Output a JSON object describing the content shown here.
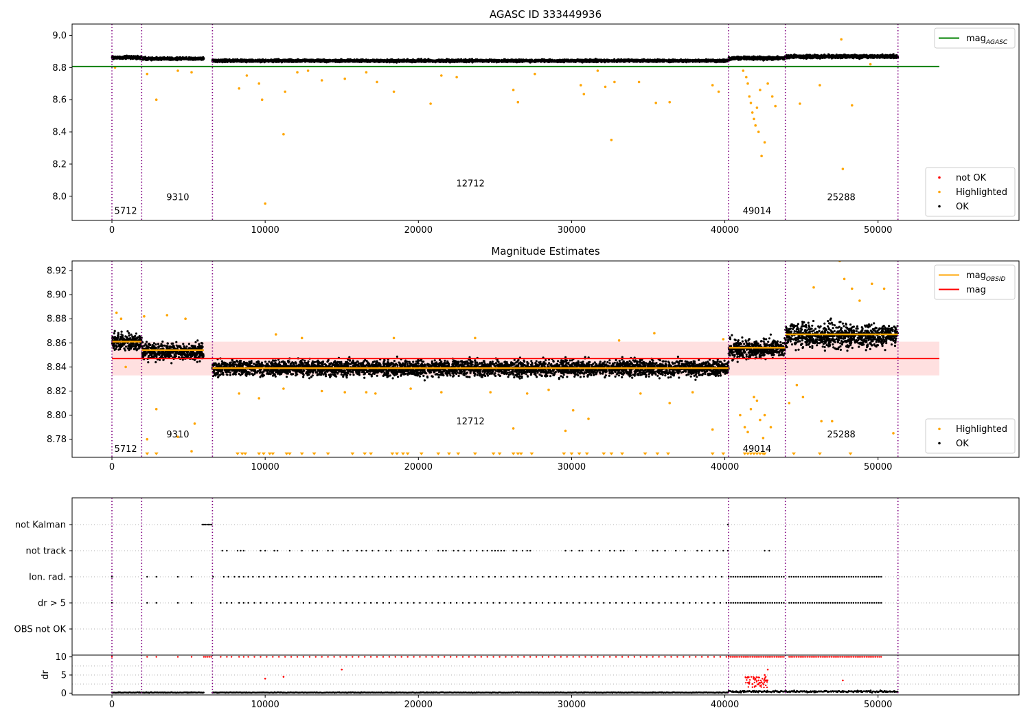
{
  "chart_data": [
    {
      "type": "scatter",
      "title": "AGASC ID 333449936",
      "xlim": [
        -2600,
        59200
      ],
      "ylim": [
        7.85,
        9.07
      ],
      "x_ticks": [
        0,
        10000,
        20000,
        30000,
        40000,
        50000
      ],
      "y_ticks": [
        8.0,
        8.2,
        8.4,
        8.6,
        8.8,
        9.0
      ],
      "y_tick_labels": [
        "8.0",
        "8.2",
        "8.4",
        "8.6",
        "8.8",
        "9.0"
      ],
      "grid": false,
      "legend_upper": {
        "placement": "top-right",
        "entries": [
          {
            "label": "mag",
            "sub": "AGASC",
            "color": "#008000",
            "kind": "line"
          }
        ]
      },
      "legend_lower": {
        "placement": "bottom-right",
        "entries": [
          {
            "label": "not OK",
            "color": "#ff0000",
            "kind": "dot"
          },
          {
            "label": "Highlighted",
            "color": "#ffa500",
            "kind": "dot"
          },
          {
            "label": "OK",
            "color": "#000000",
            "kind": "dot"
          }
        ]
      },
      "mag_agasc": {
        "y": 8.806,
        "x_end": 54000,
        "color": "#008000"
      },
      "obs_boundaries": [
        0,
        1940,
        6560,
        40250,
        43950,
        51300
      ],
      "obsid_labels": [
        {
          "text": "5712",
          "x": 900,
          "y": 7.91
        },
        {
          "text": "9310",
          "x": 4300,
          "y": 7.995
        },
        {
          "text": "12712",
          "x": 23400,
          "y": 8.08
        },
        {
          "text": "49014",
          "x": 42100,
          "y": 7.91
        },
        {
          "text": "25288",
          "x": 47600,
          "y": 7.995
        }
      ],
      "segments": [
        {
          "x": [
            0,
            1940
          ],
          "mean": 8.862,
          "spread": 0.012
        },
        {
          "x": [
            1940,
            6000
          ],
          "mean": 8.855,
          "spread": 0.011
        },
        {
          "x": [
            6560,
            40250
          ],
          "mean": 8.842,
          "spread": 0.011
        },
        {
          "x": [
            40250,
            43950
          ],
          "mean": 8.858,
          "spread": 0.013
        },
        {
          "x": [
            43950,
            51300
          ],
          "mean": 8.868,
          "spread": 0.014
        }
      ],
      "highlighted_points": [
        [
          200,
          8.8
        ],
        [
          2300,
          8.76
        ],
        [
          2900,
          8.6
        ],
        [
          4300,
          8.78
        ],
        [
          5200,
          8.77
        ],
        [
          8300,
          8.67
        ],
        [
          8800,
          8.75
        ],
        [
          9600,
          8.7
        ],
        [
          9800,
          8.6
        ],
        [
          10000,
          7.955
        ],
        [
          11200,
          8.385
        ],
        [
          11300,
          8.65
        ],
        [
          12100,
          8.77
        ],
        [
          12800,
          8.78
        ],
        [
          13700,
          8.72
        ],
        [
          15200,
          8.73
        ],
        [
          16600,
          8.77
        ],
        [
          17300,
          8.71
        ],
        [
          18400,
          8.65
        ],
        [
          20800,
          8.575
        ],
        [
          21500,
          8.75
        ],
        [
          22500,
          8.74
        ],
        [
          26200,
          8.66
        ],
        [
          26500,
          8.585
        ],
        [
          27600,
          8.76
        ],
        [
          30600,
          8.69
        ],
        [
          30800,
          8.635
        ],
        [
          31700,
          8.78
        ],
        [
          32200,
          8.68
        ],
        [
          32600,
          8.35
        ],
        [
          32800,
          8.71
        ],
        [
          34400,
          8.71
        ],
        [
          35500,
          8.58
        ],
        [
          36400,
          8.585
        ],
        [
          39200,
          8.69
        ],
        [
          39600,
          8.65
        ],
        [
          41200,
          8.78
        ],
        [
          41400,
          8.74
        ],
        [
          41500,
          8.7
        ],
        [
          41600,
          8.62
        ],
        [
          41700,
          8.58
        ],
        [
          41800,
          8.52
        ],
        [
          41900,
          8.48
        ],
        [
          42000,
          8.44
        ],
        [
          42100,
          8.55
        ],
        [
          42200,
          8.4
        ],
        [
          42300,
          8.66
        ],
        [
          42400,
          8.25
        ],
        [
          42600,
          8.335
        ],
        [
          42800,
          8.7
        ],
        [
          43100,
          8.62
        ],
        [
          43300,
          8.56
        ],
        [
          44900,
          8.575
        ],
        [
          46200,
          8.69
        ],
        [
          47600,
          8.975
        ],
        [
          47700,
          8.17
        ],
        [
          48300,
          8.565
        ],
        [
          49500,
          8.82
        ]
      ]
    },
    {
      "type": "scatter",
      "title": "Magnitude Estimates",
      "xlim": [
        -2600,
        59200
      ],
      "ylim": [
        8.765,
        8.928
      ],
      "x_ticks": [
        0,
        10000,
        20000,
        30000,
        40000,
        50000
      ],
      "y_ticks": [
        8.78,
        8.8,
        8.82,
        8.84,
        8.86,
        8.88,
        8.9,
        8.92
      ],
      "y_tick_labels": [
        "8.78",
        "8.80",
        "8.82",
        "8.84",
        "8.86",
        "8.88",
        "8.90",
        "8.92"
      ],
      "grid": false,
      "legend_upper": {
        "placement": "top-right",
        "entries": [
          {
            "label": "mag",
            "sub": "OBSID",
            "color": "#ffa500",
            "kind": "line"
          },
          {
            "label": "mag",
            "sub": "",
            "color": "#ff0000",
            "kind": "line"
          }
        ]
      },
      "legend_lower": {
        "placement": "bottom-right",
        "entries": [
          {
            "label": "Highlighted",
            "color": "#ffa500",
            "kind": "dot"
          },
          {
            "label": "OK",
            "color": "#000000",
            "kind": "dot"
          }
        ]
      },
      "mag_mean": {
        "y": 8.847,
        "band": [
          8.833,
          8.861
        ],
        "x_end": 54000,
        "color": "#ff0000"
      },
      "mag_obsid": [
        {
          "x": [
            0,
            1940
          ],
          "y": 8.861
        },
        {
          "x": [
            1940,
            6000
          ],
          "y": 8.854
        },
        {
          "x": [
            6560,
            40250
          ],
          "y": 8.839
        },
        {
          "x": [
            40250,
            43950
          ],
          "y": 8.856
        },
        {
          "x": [
            43950,
            51300
          ],
          "y": 8.867
        }
      ],
      "obs_boundaries": [
        0,
        1940,
        6560,
        40250,
        43950,
        51300
      ],
      "obsid_labels": [
        {
          "text": "5712",
          "x": 900,
          "y": 8.772
        },
        {
          "text": "9310",
          "x": 4300,
          "y": 8.784
        },
        {
          "text": "12712",
          "x": 23400,
          "y": 8.795
        },
        {
          "text": "49014",
          "x": 42100,
          "y": 8.772
        },
        {
          "text": "25288",
          "x": 47600,
          "y": 8.784
        }
      ],
      "segments": [
        {
          "x": [
            0,
            1940
          ],
          "mean": 8.861,
          "spread": 0.009
        },
        {
          "x": [
            1940,
            6000
          ],
          "mean": 8.853,
          "spread": 0.01
        },
        {
          "x": [
            6560,
            40250
          ],
          "mean": 8.839,
          "spread": 0.009
        },
        {
          "x": [
            40250,
            43950
          ],
          "mean": 8.855,
          "spread": 0.011
        },
        {
          "x": [
            43950,
            51300
          ],
          "mean": 8.866,
          "spread": 0.014
        }
      ],
      "highlighted_points": [
        [
          300,
          8.885
        ],
        [
          600,
          8.88
        ],
        [
          900,
          8.84
        ],
        [
          2100,
          8.882
        ],
        [
          2300,
          8.78
        ],
        [
          2900,
          8.805
        ],
        [
          3600,
          8.883
        ],
        [
          4300,
          8.782
        ],
        [
          4800,
          8.88
        ],
        [
          5200,
          8.77
        ],
        [
          5400,
          8.793
        ],
        [
          8300,
          8.818
        ],
        [
          9600,
          8.814
        ],
        [
          10700,
          8.867
        ],
        [
          11200,
          8.822
        ],
        [
          12400,
          8.864
        ],
        [
          13700,
          8.82
        ],
        [
          15200,
          8.819
        ],
        [
          16600,
          8.819
        ],
        [
          17200,
          8.818
        ],
        [
          18400,
          8.864
        ],
        [
          19500,
          8.822
        ],
        [
          21500,
          8.819
        ],
        [
          23700,
          8.864
        ],
        [
          24700,
          8.819
        ],
        [
          26200,
          8.789
        ],
        [
          27100,
          8.818
        ],
        [
          28500,
          8.821
        ],
        [
          29600,
          8.787
        ],
        [
          30100,
          8.804
        ],
        [
          31100,
          8.797
        ],
        [
          33100,
          8.862
        ],
        [
          34500,
          8.818
        ],
        [
          35400,
          8.868
        ],
        [
          36400,
          8.81
        ],
        [
          37900,
          8.819
        ],
        [
          39200,
          8.788
        ],
        [
          39900,
          8.863
        ],
        [
          41000,
          8.8
        ],
        [
          41300,
          8.79
        ],
        [
          41500,
          8.786
        ],
        [
          41700,
          8.805
        ],
        [
          41900,
          8.815
        ],
        [
          42100,
          8.812
        ],
        [
          42300,
          8.796
        ],
        [
          42500,
          8.781
        ],
        [
          42600,
          8.8
        ],
        [
          43000,
          8.79
        ],
        [
          44200,
          8.81
        ],
        [
          44700,
          8.825
        ],
        [
          45100,
          8.815
        ],
        [
          45800,
          8.906
        ],
        [
          46300,
          8.795
        ],
        [
          47000,
          8.795
        ],
        [
          47500,
          8.928
        ],
        [
          47800,
          8.913
        ],
        [
          48300,
          8.905
        ],
        [
          48800,
          8.895
        ],
        [
          49600,
          8.909
        ],
        [
          50400,
          8.905
        ],
        [
          51000,
          8.785
        ]
      ],
      "clipped_low_x": [
        2300,
        2900,
        8200,
        8500,
        8700,
        9600,
        9900,
        10300,
        10500,
        11400,
        11600,
        12400,
        13200,
        14100,
        15700,
        16500,
        16900,
        18300,
        18600,
        19000,
        19300,
        20200,
        21300,
        22000,
        22600,
        23700,
        24900,
        25300,
        26200,
        26500,
        26700,
        27400,
        29500,
        30000,
        30500,
        31000,
        32100,
        32600,
        33300,
        34800,
        35600,
        36300,
        39200,
        39900,
        41300,
        41500,
        41700,
        41900,
        42100,
        42300,
        42500,
        42600,
        44500,
        46200,
        48200
      ]
    },
    {
      "type": "scatter",
      "title": "",
      "xlim": [
        -2600,
        59200
      ],
      "flag_rows": [
        "not Kalman",
        "not track",
        "Ion. rad.",
        "dr > 5",
        "OBS not OK"
      ],
      "dr_ylabel": "dr",
      "dr_ylim": [
        -0.5,
        10.5
      ],
      "dr_yticks": [
        0,
        5,
        10
      ],
      "dr_ytick_labels": [
        "0",
        "5",
        "10"
      ],
      "x_ticks": [
        0,
        10000,
        20000,
        30000,
        40000,
        50000
      ],
      "grid": "horizontal dotted",
      "obs_boundaries": [
        0,
        1940,
        6560,
        40250,
        43950,
        51300
      ],
      "not_kalman_x": [
        5900,
        6000,
        6100,
        6200,
        6300,
        6400,
        6500,
        40200
      ],
      "not_track_x": [
        7200,
        7500,
        8200,
        8400,
        8600,
        9700,
        10000,
        10600,
        10800,
        11600,
        12400,
        13100,
        13400,
        14100,
        14400,
        15100,
        15400,
        16000,
        16300,
        16600,
        17000,
        17400,
        17900,
        18200,
        18900,
        19300,
        19500,
        20000,
        20500,
        21300,
        21600,
        21800,
        22300,
        22600,
        23000,
        23400,
        23800,
        24200,
        24500,
        24800,
        25000,
        25200,
        25400,
        25600,
        26200,
        26400,
        26800,
        27100,
        27300,
        29600,
        30000,
        30500,
        30700,
        31300,
        31800,
        32500,
        32800,
        33200,
        33400,
        34200,
        35300,
        35600,
        36100,
        36800,
        37400,
        38200,
        38500,
        39000,
        39500,
        39900,
        40200,
        42600,
        42900
      ],
      "ion_rad_x": [
        0,
        2300,
        2900,
        4300,
        5200,
        6600,
        7300,
        7600,
        8000,
        8300,
        8600,
        8900,
        9200,
        9600,
        9900,
        10300,
        10700,
        11100,
        11400,
        11800,
        12200,
        12600,
        13000,
        13400,
        13800,
        14200,
        14600,
        15000,
        15400,
        15800,
        16200,
        16600,
        17000,
        17400,
        17800,
        18200,
        18600,
        19000,
        19400,
        19800,
        20200,
        20600,
        21000,
        21400,
        21800,
        22200,
        22600,
        23000,
        23400,
        23800,
        24200,
        24600,
        25000,
        25400,
        25800,
        26200,
        26600,
        27000,
        27400,
        27800,
        28200,
        28600,
        29000,
        29400,
        29800,
        30200,
        30600,
        31000,
        31400,
        31800,
        32200,
        32600,
        33000,
        33400,
        33800,
        34200,
        34600,
        35000,
        35400,
        35800,
        36200,
        36600,
        37000,
        37400,
        37800,
        38200,
        38600,
        39000,
        39400,
        39800
      ],
      "dr5_x": [
        0,
        2300,
        2900,
        4300,
        5200,
        7100,
        7500,
        7800,
        8300,
        8600,
        8900,
        9300,
        9700,
        10100,
        10500,
        10900,
        11300,
        11700,
        12100,
        12500,
        12900,
        13300,
        13700,
        14100,
        14500,
        14900,
        15300,
        15700,
        16100,
        16500,
        16900,
        17300,
        17700,
        18100,
        18500,
        18900,
        19300,
        19700,
        20100,
        20500,
        20900,
        21300,
        21700,
        22100,
        22500,
        22900,
        23300,
        23700,
        24100,
        24500,
        24900,
        25300,
        25700,
        26100,
        26500,
        26900,
        27300,
        27700,
        28100,
        28500,
        28900,
        29300,
        29700,
        30100,
        30500,
        30900,
        31300,
        31700,
        32100,
        32500,
        32900,
        33300,
        33700,
        34100,
        34500,
        34900,
        35300,
        35700,
        36100,
        36500,
        36900,
        37300,
        37700,
        38100,
        38500,
        38900,
        39300,
        39700,
        40100
      ],
      "dense_flag_ranges": [
        [
          40250,
          43900
        ],
        [
          44200,
          50300
        ]
      ],
      "dr_ok_segments": [
        [
          0,
          6000
        ],
        [
          6560,
          40250
        ],
        [
          40250,
          51300
        ]
      ],
      "dr_not_ok_points": [
        [
          10000,
          4
        ],
        [
          11200,
          4.5
        ],
        [
          15000,
          6.5
        ],
        [
          41600,
          3
        ],
        [
          41800,
          2.5
        ],
        [
          42000,
          4
        ],
        [
          42200,
          3.5
        ],
        [
          42400,
          3
        ],
        [
          42600,
          5
        ],
        [
          42800,
          6.5
        ],
        [
          47700,
          3.5
        ]
      ]
    }
  ]
}
